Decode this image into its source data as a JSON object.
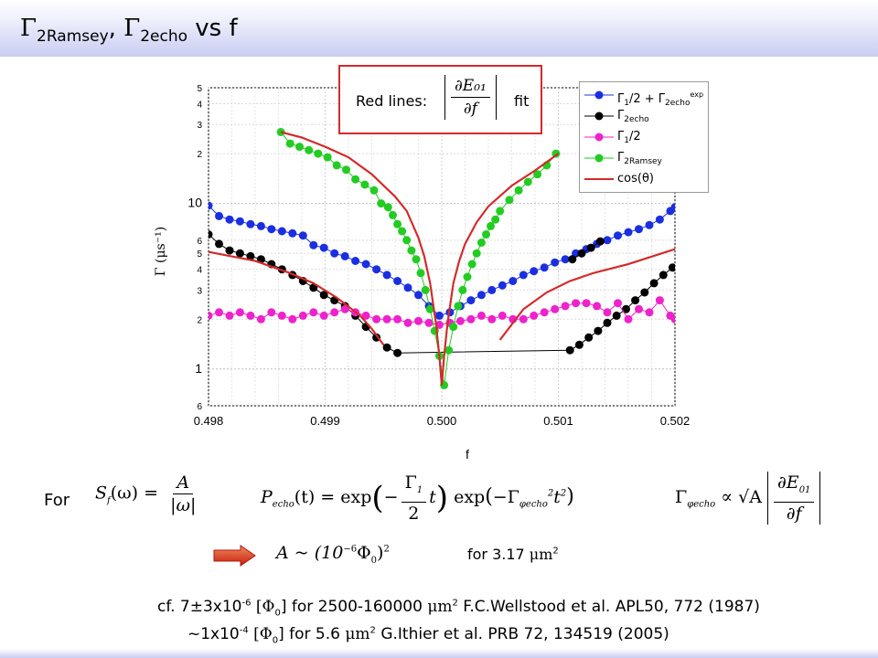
{
  "slide": {
    "title_sym1": "Γ",
    "title_sub1": "2Ramsey",
    "title_sep": ", ",
    "title_sym2": "Γ",
    "title_sub2": "2echo",
    "title_tail": " vs f"
  },
  "redbox": {
    "label": "Red lines:",
    "formula_num": "∂E₀₁",
    "formula_den": "∂f",
    "suffix": "fit"
  },
  "legend": [
    {
      "sym": "Γ",
      "sub": "1",
      "mid": "/2 + Γ",
      "sub2": "2echo",
      "sup": "exp",
      "color": "#1a2fe0",
      "marker": true
    },
    {
      "sym": "Γ",
      "sub": "2echo",
      "mid": "",
      "sub2": "",
      "sup": "",
      "color": "#000000",
      "marker": true
    },
    {
      "sym": "Γ",
      "sub": "1",
      "mid": "/2",
      "sub2": "",
      "sup": "",
      "color": "#ee22cc",
      "marker": true
    },
    {
      "sym": "Γ",
      "sub": "2Ramsey",
      "mid": "",
      "sub2": "",
      "sup": "",
      "color": "#22cc22",
      "marker": true
    },
    {
      "sym": "cos(θ)",
      "sub": "",
      "mid": "",
      "sub2": "",
      "sup": "",
      "color": "#d42a2a",
      "marker": false
    }
  ],
  "equations": {
    "for_label": "For",
    "sf": {
      "lhs": "S",
      "lhs_sub": "f",
      "arg": "(ω) = ",
      "num": "A",
      "den": "|ω|"
    },
    "pecho": {
      "lhs": "P",
      "lhs_sub": "echo",
      "arg": "(t) = exp",
      "num": "Γ",
      "num_sub": "1",
      "den": "2",
      "tail1": "t",
      "mid": "exp",
      "neg": "−Γ",
      "neg_sub": "φecho",
      "neg_sup": "2",
      "tail2": "t",
      "tail2_sup": "2"
    },
    "gamma_phi": {
      "lhs": "Γ",
      "lhs_sub": "φecho",
      "rel": " ∝ √A ",
      "num": "∂E",
      "num_sub": "01",
      "den": "∂f"
    },
    "a_approx": {
      "lhs": "A ~ (10",
      "exp": "−6",
      "mid": "Φ",
      "mid_sub": "0",
      "close": ")",
      "close_sup": "2"
    },
    "for_area": {
      "text": "for 3.17 ",
      "unit": "μm",
      "unit_sup": "2"
    }
  },
  "references": {
    "line1": {
      "pre": "cf. 7±3x10",
      "exp": "-6",
      "mid": " [Φ",
      "mid_sub": "0",
      "post": "] for 2500-160000 ",
      "unit": "μm",
      "unit_sup": "2",
      "cite": " F.C.Wellstood  et al. APL50, 772 (1987)"
    },
    "line2": {
      "pre": "~1x10",
      "exp": "-4",
      "mid": " [Φ",
      "mid_sub": "0",
      "post": "] for 5.6 ",
      "unit": "μm",
      "unit_sup": "2",
      "cite": "   G.Ithier et al. PRB 72, 134519 (2005)"
    }
  },
  "chart_data": {
    "type": "scatter",
    "xlabel": "f",
    "ylabel": "Γ (μs⁻¹)",
    "xlim": [
      0.498,
      0.502
    ],
    "ylim": [
      0.6,
      50
    ],
    "y_scale": "log",
    "grid": true,
    "legend_position": "top-right",
    "x_tick_labels": [
      "0.498",
      "0.499",
      "0.500",
      "0.501",
      "0.502"
    ],
    "y_major_ticks": [
      {
        "value": 1,
        "label": "1"
      },
      {
        "value": 10,
        "label": "10"
      }
    ],
    "y_minor_ticks": [
      {
        "value": 0.6,
        "label": "6"
      },
      {
        "value": 2,
        "label": "2"
      },
      {
        "value": 3,
        "label": "3"
      },
      {
        "value": 4,
        "label": "4"
      },
      {
        "value": 5,
        "label": "5"
      },
      {
        "value": 6,
        "label": "6"
      },
      {
        "value": 20,
        "label": "2"
      },
      {
        "value": 30,
        "label": "3"
      },
      {
        "value": 40,
        "label": "4"
      },
      {
        "value": 50,
        "label": "5"
      }
    ],
    "series": [
      {
        "name": "Γ1/2 + Γ2echo exp",
        "color": "#1a2fe0",
        "marker": "circle",
        "line": true,
        "x": [
          0.498,
          0.49809,
          0.49818,
          0.49827,
          0.49836,
          0.49845,
          0.49854,
          0.49863,
          0.49872,
          0.49881,
          0.4989,
          0.49899,
          0.49908,
          0.49917,
          0.49926,
          0.49935,
          0.49944,
          0.49953,
          0.49962,
          0.49971,
          0.4998,
          0.49989,
          0.49998,
          0.50007,
          0.50016,
          0.50025,
          0.50034,
          0.50043,
          0.50052,
          0.50061,
          0.5007,
          0.50079,
          0.50088,
          0.50097,
          0.50106,
          0.50115,
          0.50124,
          0.50133,
          0.50142,
          0.50151,
          0.5016,
          0.50169,
          0.50178,
          0.50187,
          0.50196,
          0.502
        ],
        "y": [
          9.7,
          8.4,
          8.0,
          7.8,
          7.5,
          7.3,
          7.0,
          6.8,
          6.6,
          6.4,
          5.6,
          5.4,
          5.0,
          4.8,
          4.5,
          4.3,
          4.0,
          3.7,
          3.4,
          3.1,
          2.8,
          2.4,
          2.1,
          2.2,
          2.4,
          2.6,
          2.8,
          3.0,
          3.2,
          3.4,
          3.7,
          3.9,
          4.1,
          4.4,
          4.6,
          5.0,
          5.3,
          5.7,
          6.0,
          6.4,
          6.7,
          7.0,
          7.4,
          8.0,
          9.0,
          9.5
        ]
      },
      {
        "name": "Γ2echo",
        "color": "#000000",
        "marker": "circle",
        "line": true,
        "x": [
          0.498,
          0.49809,
          0.49818,
          0.49827,
          0.49836,
          0.49845,
          0.49854,
          0.49863,
          0.49872,
          0.49881,
          0.4989,
          0.49899,
          0.49908,
          0.49917,
          0.49926,
          0.49935,
          0.49944,
          0.49953,
          0.49962,
          0.5011,
          0.50118,
          0.50126,
          0.50134,
          0.50142,
          0.5015,
          0.50158,
          0.50166,
          0.50174,
          0.50182,
          0.5019,
          0.50198,
          null,
          0.50112,
          0.5012,
          0.50128,
          0.50136
        ],
        "y": [
          6.5,
          5.7,
          5.2,
          5.0,
          4.8,
          4.6,
          4.3,
          4.0,
          3.7,
          3.4,
          3.1,
          2.8,
          2.6,
          2.4,
          2.1,
          1.8,
          1.55,
          1.35,
          1.25,
          1.3,
          1.4,
          1.55,
          1.7,
          1.9,
          2.1,
          2.3,
          2.6,
          2.9,
          3.3,
          3.7,
          4.1,
          null,
          4.6,
          5.0,
          5.4,
          5.9
        ]
      },
      {
        "name": "Γ1/2",
        "color": "#ee22cc",
        "marker": "circle",
        "line": true,
        "x": [
          0.498,
          0.49809,
          0.49818,
          0.49827,
          0.49836,
          0.49845,
          0.49854,
          0.49863,
          0.49872,
          0.49881,
          0.4989,
          0.49899,
          0.49908,
          0.49917,
          0.49926,
          0.49935,
          0.49944,
          0.49953,
          0.49962,
          0.49971,
          0.4998,
          0.49989,
          0.49998,
          0.50007,
          0.50016,
          0.50025,
          0.50034,
          0.50043,
          0.50052,
          0.50061,
          0.5007,
          0.50079,
          0.50088,
          0.50097,
          0.50106,
          0.50115,
          0.50124,
          0.50133,
          0.50142,
          0.50151,
          0.5016,
          0.50169,
          0.50178,
          0.50187,
          0.50196,
          0.502
        ],
        "y": [
          2.1,
          2.2,
          2.1,
          2.2,
          2.1,
          2.0,
          2.2,
          2.1,
          2.0,
          2.1,
          2.2,
          2.1,
          2.2,
          2.3,
          2.2,
          2.1,
          2.0,
          2.0,
          2.0,
          1.9,
          1.95,
          1.9,
          1.85,
          1.9,
          1.95,
          2.0,
          2.1,
          2.0,
          2.1,
          2.0,
          2.0,
          2.1,
          2.2,
          2.3,
          2.4,
          2.5,
          2.5,
          2.4,
          2.2,
          2.5,
          2.0,
          2.3,
          2.2,
          2.6,
          2.1,
          2.0
        ]
      },
      {
        "name": "Γ2Ramsey",
        "color": "#22cc22",
        "marker": "circle",
        "line": true,
        "x": [
          0.49862,
          0.4987,
          0.49878,
          0.49886,
          0.49894,
          0.49902,
          0.4991,
          0.49918,
          0.49926,
          0.49934,
          0.49942,
          0.49948,
          0.49954,
          0.49958,
          0.49962,
          0.49966,
          0.4997,
          0.49974,
          0.49978,
          0.49982,
          0.49986,
          0.4999,
          0.49994,
          0.49998,
          0.50002,
          0.50006,
          0.5001,
          0.50014,
          0.50018,
          0.50022,
          0.50026,
          0.5003,
          0.50034,
          0.50038,
          0.50042,
          0.50046,
          0.5005,
          0.50058,
          0.50066,
          0.50074,
          0.50082,
          0.5009,
          0.50098
        ],
        "y": [
          27,
          23,
          22,
          21,
          20,
          19,
          17,
          16,
          14,
          13,
          12,
          10,
          9.5,
          8.5,
          7.5,
          6.8,
          6.0,
          5.2,
          4.6,
          3.8,
          3.0,
          2.3,
          1.7,
          1.2,
          0.8,
          1.3,
          1.8,
          2.4,
          3.0,
          3.6,
          4.3,
          5.0,
          5.8,
          6.5,
          7.3,
          8.0,
          9.0,
          10.5,
          12,
          13.5,
          15,
          17,
          20
        ]
      },
      {
        "name": "cos(θ)",
        "color": "#d42a2a",
        "marker": "none",
        "line": true,
        "curves": [
          {
            "x": [
              0.49862,
              0.4988,
              0.499,
              0.4992,
              0.4994,
              0.4996,
              0.4997,
              0.4998,
              0.49985,
              0.4999,
              0.49995,
              0.49998,
              0.5
            ],
            "y": [
              27,
              25,
              22,
              19,
              15,
              11,
              9,
              6.2,
              4.8,
              3.3,
              1.9,
              1.2,
              0.8
            ]
          },
          {
            "x": [
              0.5,
              0.50002,
              0.50005,
              0.5001,
              0.50015,
              0.5002,
              0.5003,
              0.5004,
              0.5006,
              0.5008,
              0.501
            ],
            "y": [
              0.8,
              1.2,
              1.9,
              3.3,
              4.5,
              5.7,
              7.7,
              9.6,
              12.8,
              15.8,
              20
            ]
          },
          {
            "x": [
              0.498,
              0.4984,
              0.4987,
              0.4989,
              0.4991,
              0.4993,
              0.4994,
              0.4995
            ],
            "y": [
              5.1,
              4.5,
              3.8,
              3.3,
              2.7,
              2.1,
              1.75,
              1.4
            ]
          },
          {
            "x": [
              0.5005,
              0.5007,
              0.5009,
              0.5011,
              0.5013,
              0.5016,
              0.502
            ],
            "y": [
              1.5,
              2.3,
              2.9,
              3.4,
              3.8,
              4.3,
              5.3
            ]
          }
        ]
      }
    ]
  }
}
